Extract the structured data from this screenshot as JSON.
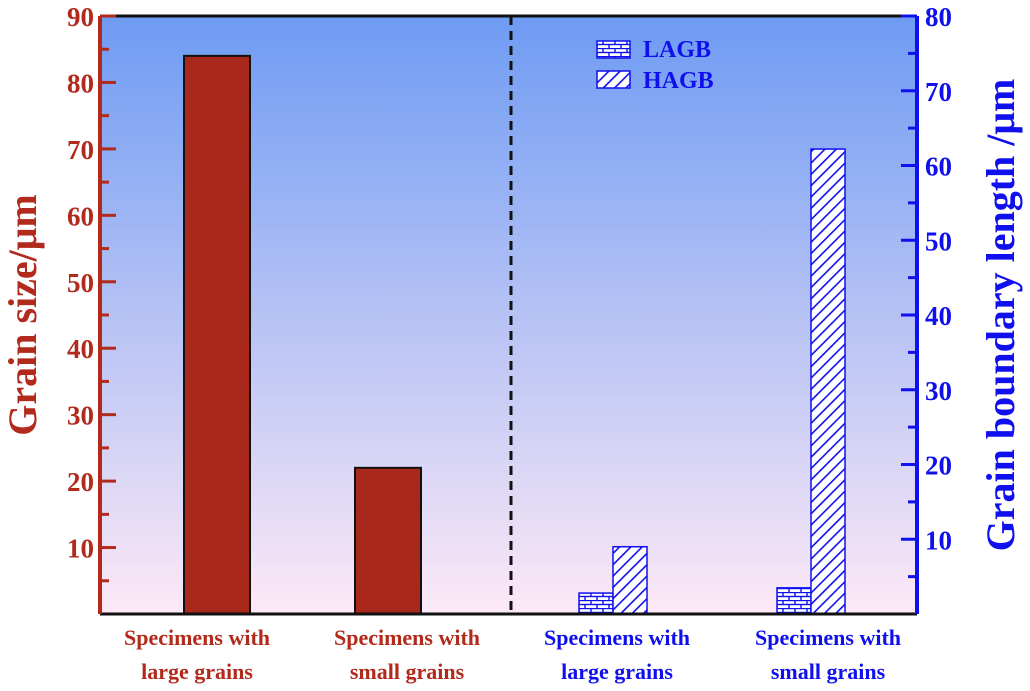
{
  "chart_data": {
    "type": "bar",
    "background_gradient": [
      "#6e9bf3",
      "#fde9f6"
    ],
    "left_axis": {
      "label": "Grain size/μm",
      "color": "#b22a1c",
      "ylim": [
        0,
        90
      ],
      "ticks": [
        "10",
        "20",
        "30",
        "40",
        "50",
        "60",
        "70",
        "80",
        "90"
      ]
    },
    "right_axis": {
      "label": "Grain boundary length /μm",
      "color": "#1010ee",
      "ylim": [
        0,
        80
      ],
      "ticks": [
        "10",
        "20",
        "30",
        "40",
        "50",
        "60",
        "70",
        "80"
      ]
    },
    "grain_size_bars": {
      "color": "#a8291c",
      "categories": [
        {
          "line1": "Specimens with",
          "line2": "large grains",
          "value": 84
        },
        {
          "line1": "Specimens with",
          "line2": "small grains",
          "value": 22
        }
      ]
    },
    "boundary_groups": [
      {
        "line1": "Specimens with",
        "line2": "large grains",
        "LAGB": 2.8,
        "HAGB": 9.0
      },
      {
        "line1": "Specimens with",
        "line2": "small grains",
        "LAGB": 3.5,
        "HAGB": 62.2
      }
    ],
    "legend": {
      "position": "top-center-right",
      "items": [
        {
          "label": "LAGB",
          "pattern": "brick"
        },
        {
          "label": "HAGB",
          "pattern": "hatch"
        }
      ]
    },
    "divider": "dashed-vertical"
  }
}
